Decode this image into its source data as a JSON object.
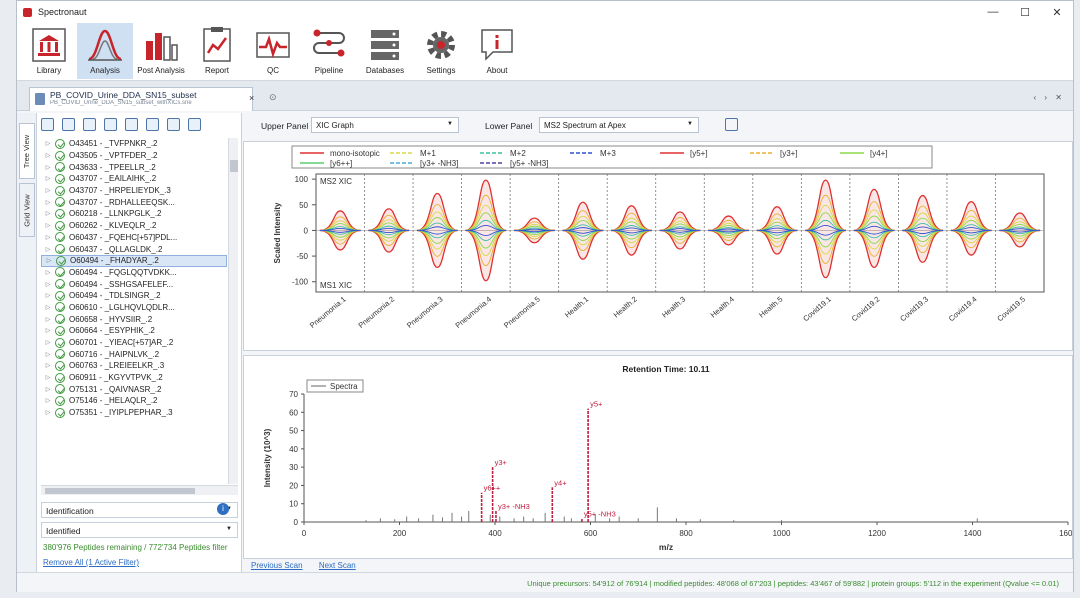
{
  "app": {
    "title": "Spectronaut",
    "controls": [
      "—",
      "☐",
      "✕"
    ]
  },
  "ribbon": [
    {
      "label": "Library",
      "icon": "library-icon"
    },
    {
      "label": "Analysis",
      "icon": "analysis-icon",
      "active": true
    },
    {
      "label": "Post Analysis",
      "icon": "post-analysis-icon"
    },
    {
      "label": "Report",
      "icon": "report-icon"
    },
    {
      "label": "QC",
      "icon": "qc-icon"
    },
    {
      "label": "Pipeline",
      "icon": "pipeline-icon"
    },
    {
      "label": "Databases",
      "icon": "databases-icon"
    },
    {
      "label": "Settings",
      "icon": "settings-icon"
    },
    {
      "label": "About",
      "icon": "about-icon"
    }
  ],
  "doc_tab": {
    "title": "PB_COVID_Urine_DDA_SN15_subset",
    "subtitle": "PB_COVID_Urine_DDA_SN15_subset_withXICs.sne",
    "close": "×",
    "add": "⊙",
    "nav": "‹ › ✕"
  },
  "left_panel": {
    "vtabs": [
      "Tree View",
      "Grid View"
    ],
    "tree_items": [
      "O43451 - _TVFPNKR_.2",
      "O43505 - _VPTFDER_.2",
      "O43633 - _TPEELLR_.2",
      "O43707 - _EAILAIHK_.2",
      "O43707 - _HRPELIEYDK_.3",
      "O43707 - _RDHALLEEQSK...",
      "O60218 - _LLNKPGLK_.2",
      "O60262 - _KLVEQLR_.2",
      "O60437 - _FQEHC[+57]PDL...",
      "O60437 - _QLLAGLDK_.2",
      "O60494 - _FHADYAR_.2",
      "O60494 - _FQGLQQTVDKK...",
      "O60494 - _SSHGSAFELEF...",
      "O60494 - _TDLSINGR_.2",
      "O60610 - _LGLHQVLQDLR...",
      "O60658 - _HYVSIIR_.2",
      "O60664 - _ESYPHIK_.2",
      "O60701 - _YIEAC[+57]AR_.2",
      "O60716 - _HAIPNLVK_.2",
      "O60763 - _LREIEELKR_.3",
      "O60911 - _KGYVTPVK_.2",
      "O75131 - _QAIVNASR_.2",
      "O75146 - _HELAQLR_.2",
      "O75351 - _IYIPLPEPHAR_.3"
    ],
    "selected_index": 10,
    "filter_select": "Identification",
    "filter_value": "Identified",
    "remaining": "380'976 Peptides remaining / 772'734 Peptides filter",
    "remove_filter": "Remove All (1 Active Filter)",
    "hscroll_label": "III"
  },
  "controls": {
    "upper_label": "Upper Panel",
    "upper_value": "XIC Graph",
    "lower_label": "Lower Panel",
    "lower_value": "MS2 Spectrum at Apex"
  },
  "xic_chart": {
    "chart_data": {
      "type": "line",
      "ylabel": "Scaled Intensity",
      "ylim": [
        -120,
        110
      ],
      "yticks": [
        100,
        50,
        0,
        -50,
        -100
      ],
      "top_label": "MS2 XIC",
      "bottom_label": "MS1 XIC",
      "categories": [
        "Pneumonia.1",
        "Pneumonia.2",
        "Pneumonia.3",
        "Pneumonia.4",
        "Pneumonia.5",
        "Health.1",
        "Health.2",
        "Health.3",
        "Health.4",
        "Health.5",
        "Covid19.1",
        "Covid19.2",
        "Covid19.3",
        "Covid19.4",
        "Covid19.5"
      ],
      "apex_ms2": [
        38,
        42,
        72,
        98,
        24,
        55,
        48,
        36,
        28,
        46,
        98,
        80,
        68,
        56,
        34
      ],
      "apex_ms1": [
        -38,
        -42,
        -72,
        -98,
        -24,
        -56,
        -48,
        -36,
        -28,
        -46,
        -92,
        -72,
        -62,
        -48,
        -32
      ],
      "legend": [
        {
          "name": "mono-isotopic",
          "color": "#e03030",
          "dash": ""
        },
        {
          "name": "M+1",
          "color": "#d8d84a",
          "dash": "4,2"
        },
        {
          "name": "M+2",
          "color": "#3cc0a0",
          "dash": "4,2"
        },
        {
          "name": "M+3",
          "color": "#3050d0",
          "dash": "4,2"
        },
        {
          "name": "[y5+]",
          "color": "#e03030",
          "dash": ""
        },
        {
          "name": "[y3+]",
          "color": "#e8b030",
          "dash": "4,2"
        },
        {
          "name": "[y4+]",
          "color": "#8cd848",
          "dash": ""
        },
        {
          "name": "[y6++]",
          "color": "#58d070",
          "dash": ""
        },
        {
          "name": "[y3+ -NH3]",
          "color": "#48a8d8",
          "dash": "4,2"
        },
        {
          "name": "[y5+ -NH3]",
          "color": "#5040a0",
          "dash": "4,2"
        }
      ]
    }
  },
  "ms2_chart": {
    "chart_data": {
      "type": "bar",
      "title": "Retention Time: 10.11",
      "xlabel": "m/z",
      "ylabel": "Intensity (10^3)",
      "xlim": [
        0,
        1600
      ],
      "ylim": [
        0,
        70
      ],
      "xticks": [
        0,
        200,
        400,
        600,
        800,
        1000,
        1200,
        1400,
        1600
      ],
      "yticks": [
        0,
        10,
        20,
        30,
        40,
        50,
        60,
        70
      ],
      "legend": "Spectra",
      "background_peaks": [
        [
          130,
          1
        ],
        [
          160,
          2
        ],
        [
          190,
          1.5
        ],
        [
          215,
          3
        ],
        [
          240,
          2
        ],
        [
          270,
          4
        ],
        [
          290,
          2.5
        ],
        [
          310,
          5
        ],
        [
          330,
          3
        ],
        [
          345,
          6
        ],
        [
          390,
          4
        ],
        [
          410,
          3
        ],
        [
          440,
          2
        ],
        [
          460,
          3
        ],
        [
          480,
          2
        ],
        [
          505,
          5
        ],
        [
          545,
          3
        ],
        [
          560,
          2
        ],
        [
          610,
          4
        ],
        [
          640,
          2
        ],
        [
          660,
          3
        ],
        [
          700,
          2
        ],
        [
          740,
          8
        ],
        [
          780,
          2
        ],
        [
          830,
          1.5
        ],
        [
          900,
          1
        ],
        [
          1000,
          1
        ],
        [
          1410,
          2
        ]
      ],
      "labeled_peaks": [
        {
          "mz": 372,
          "intensity": 16,
          "label": "y6++"
        },
        {
          "mz": 395,
          "intensity": 30,
          "label": "y3+"
        },
        {
          "mz": 402,
          "intensity": 6,
          "label": "y3+ -NH3"
        },
        {
          "mz": 520,
          "intensity": 19,
          "label": "y4+"
        },
        {
          "mz": 582,
          "intensity": 2,
          "label": "y5+ -NH3"
        },
        {
          "mz": 595,
          "intensity": 62,
          "label": "y5+"
        }
      ]
    }
  },
  "bottom_links": {
    "previous": "Previous Scan",
    "next": "Next Scan"
  },
  "status": "Unique precursors: 54'912 of 76'914 | modified peptides: 48'068 of 67'203 | peptides: 43'467 of 59'882 | protein groups: 5'112 in the experiment (Qvalue <= 0.01)"
}
